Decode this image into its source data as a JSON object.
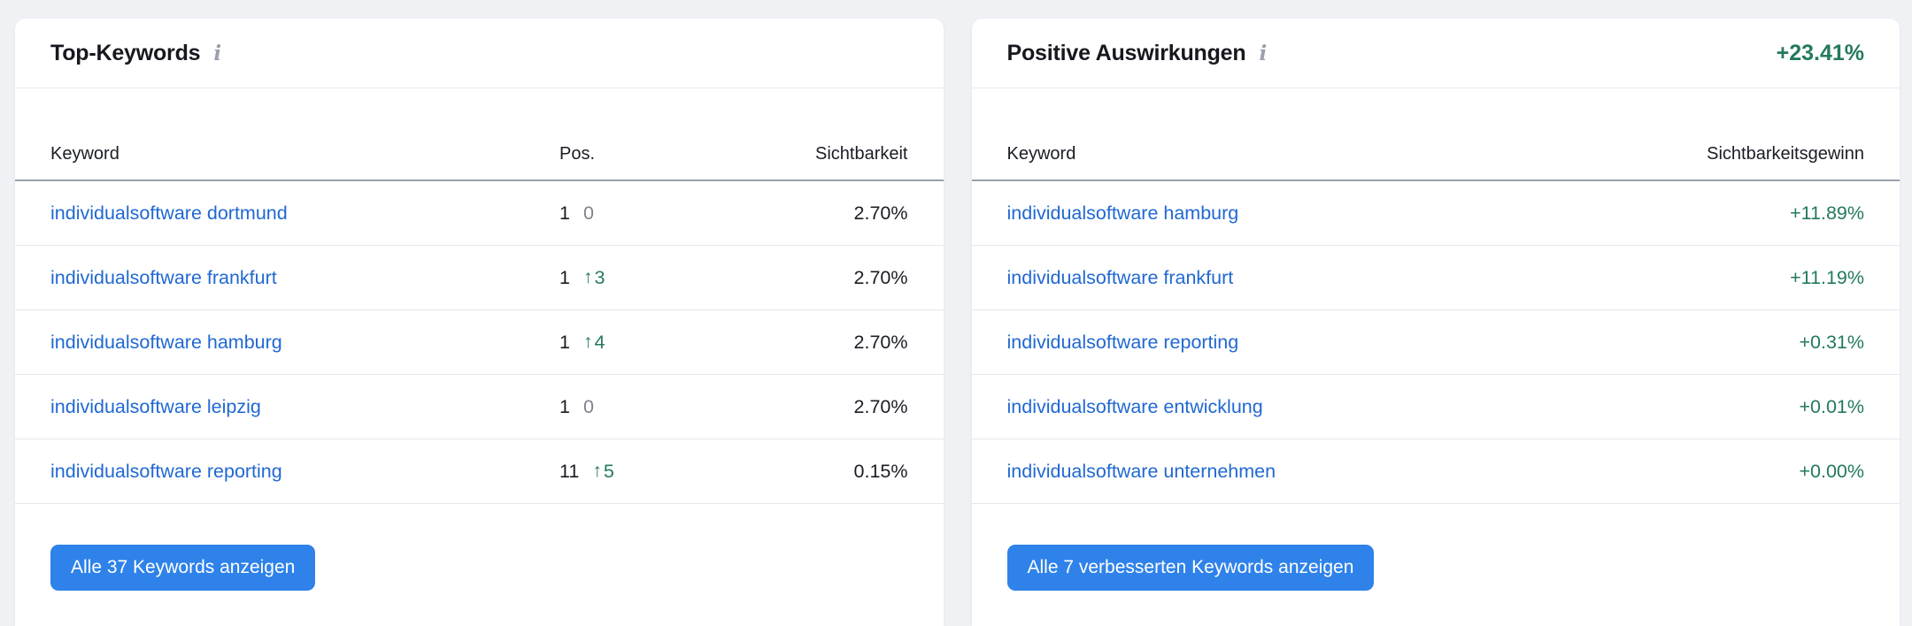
{
  "icons": {
    "info": "i",
    "arrow_up": "↑"
  },
  "colors": {
    "positive_green": "#237a5c",
    "link_blue": "#2068d2",
    "button_blue": "#2f82e9",
    "page_background": "#eff1f5"
  },
  "top_keywords": {
    "title": "Top-Keywords",
    "columns": {
      "keyword": "Keyword",
      "pos": "Pos.",
      "visibility": "Sichtbarkeit"
    },
    "rows": [
      {
        "keyword": "individualsoftware dortmund",
        "pos": "1",
        "change": "0",
        "change_dir": "none",
        "visibility": "2.70%"
      },
      {
        "keyword": "individualsoftware frankfurt",
        "pos": "1",
        "change": "3",
        "change_dir": "up",
        "visibility": "2.70%"
      },
      {
        "keyword": "individualsoftware hamburg",
        "pos": "1",
        "change": "4",
        "change_dir": "up",
        "visibility": "2.70%"
      },
      {
        "keyword": "individualsoftware leipzig",
        "pos": "1",
        "change": "0",
        "change_dir": "none",
        "visibility": "2.70%"
      },
      {
        "keyword": "individualsoftware reporting",
        "pos": "11",
        "change": "5",
        "change_dir": "up",
        "visibility": "0.15%"
      }
    ],
    "button_label": "Alle 37 Keywords anzeigen"
  },
  "positive_impact": {
    "title": "Positive Auswirkungen",
    "total_gain": "+23.41%",
    "columns": {
      "keyword": "Keyword",
      "gain": "Sichtbarkeitsgewinn"
    },
    "rows": [
      {
        "keyword": "individualsoftware hamburg",
        "gain": "+11.89%"
      },
      {
        "keyword": "individualsoftware frankfurt",
        "gain": "+11.19%"
      },
      {
        "keyword": "individualsoftware reporting",
        "gain": "+0.31%"
      },
      {
        "keyword": "individualsoftware entwicklung",
        "gain": "+0.01%"
      },
      {
        "keyword": "individualsoftware unternehmen",
        "gain": "+0.00%"
      }
    ],
    "button_label": "Alle 7 verbesserten Keywords anzeigen"
  }
}
